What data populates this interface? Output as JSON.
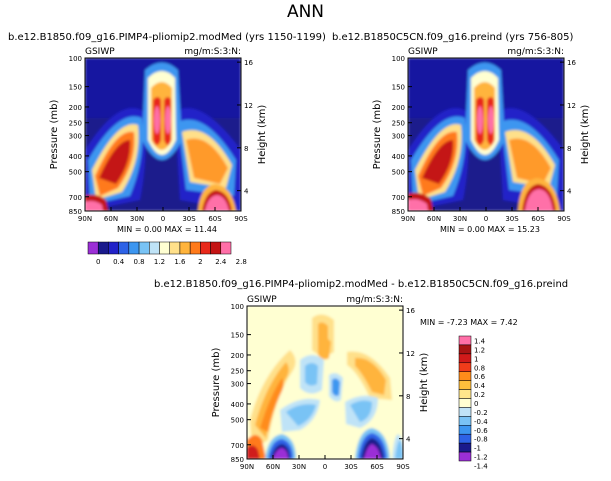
{
  "page": {
    "title": "ANN"
  },
  "colorbar_top": {
    "colors": [
      "#9b2fd6",
      "#1a1a8c",
      "#2222c8",
      "#2d62e6",
      "#3c96f0",
      "#79c3f5",
      "#bfe3f7",
      "#ffffd2",
      "#ffe08a",
      "#ffb43c",
      "#ff7a1a",
      "#e8281a",
      "#c41414",
      "#ff6fa8"
    ],
    "labels": [
      "0",
      "0.4",
      "0.8",
      "1.2",
      "1.6",
      "2",
      "2.4",
      "2.8"
    ]
  },
  "colorbar_diff": {
    "colors": [
      "#ff6fa8",
      "#a81414",
      "#d01a1a",
      "#f03c1a",
      "#ff8c1a",
      "#ffbe3c",
      "#ffe68c",
      "#ffffd2",
      "#bfe3f7",
      "#79c3f5",
      "#3c96f0",
      "#2d62e6",
      "#1a1a8c",
      "#9b2fd6"
    ],
    "labels": [
      "1.4",
      "1.2",
      "1",
      "0.8",
      "0.6",
      "0.4",
      "0.2",
      "0",
      "-0.2",
      "-0.4",
      "-0.6",
      "-0.8",
      "-1",
      "-1.2",
      "-1.4"
    ]
  },
  "chart_data": [
    {
      "type": "heatmap",
      "title": "b.e12.B1850.f09_g16.PIMP4-pliomip2.modMed (yrs 1150-1199)",
      "corner_left": "GSIWP",
      "corner_right": "mg/m:S:3:N:",
      "xlabel": "",
      "ylabel": "Pressure (mb)",
      "ylabel_right": "Height (km)",
      "x_ticks": [
        "90N",
        "60N",
        "30N",
        "0",
        "30S",
        "60S",
        "90S"
      ],
      "y_ticks": [
        "100",
        "150",
        "200",
        "250",
        "300",
        "400",
        "500",
        "700",
        "850"
      ],
      "y_ticks_right": [
        "16",
        "12",
        "8",
        "4"
      ],
      "stats": "MIN =   0.00   MAX =  11.44",
      "min": 0.0,
      "max": 11.44
    },
    {
      "type": "heatmap",
      "title": "b.e12.B1850C5CN.f09_g16.preind (yrs 756-805)",
      "corner_left": "GSIWP",
      "corner_right": "mg/m:S:3:N:",
      "xlabel": "",
      "ylabel": "Pressure (mb)",
      "ylabel_right": "Height (km)",
      "x_ticks": [
        "90N",
        "60N",
        "30N",
        "0",
        "30S",
        "60S",
        "90S"
      ],
      "y_ticks": [
        "100",
        "150",
        "200",
        "250",
        "300",
        "400",
        "500",
        "700",
        "850"
      ],
      "y_ticks_right": [
        "16",
        "12",
        "8",
        "4"
      ],
      "stats": "MIN =   0.00   MAX =  15.23",
      "min": 0.0,
      "max": 15.23
    },
    {
      "type": "heatmap",
      "title": "b.e12.B1850.f09_g16.PIMP4-pliomip2.modMed - b.e12.B1850C5CN.f09_g16.preind",
      "corner_left": "GSIWP",
      "corner_right": "mg/m:S:3:N:",
      "xlabel": "",
      "ylabel": "Pressure (mb)",
      "ylabel_right": "Height (km)",
      "x_ticks": [
        "90N",
        "60N",
        "30N",
        "0",
        "30S",
        "60S",
        "90S"
      ],
      "y_ticks": [
        "100",
        "150",
        "200",
        "250",
        "300",
        "400",
        "500",
        "700",
        "850"
      ],
      "y_ticks_right": [
        "16",
        "12",
        "8",
        "4"
      ],
      "stats": "MIN =  -7.23   MAX =   7.42",
      "min": -7.23,
      "max": 7.42
    }
  ]
}
